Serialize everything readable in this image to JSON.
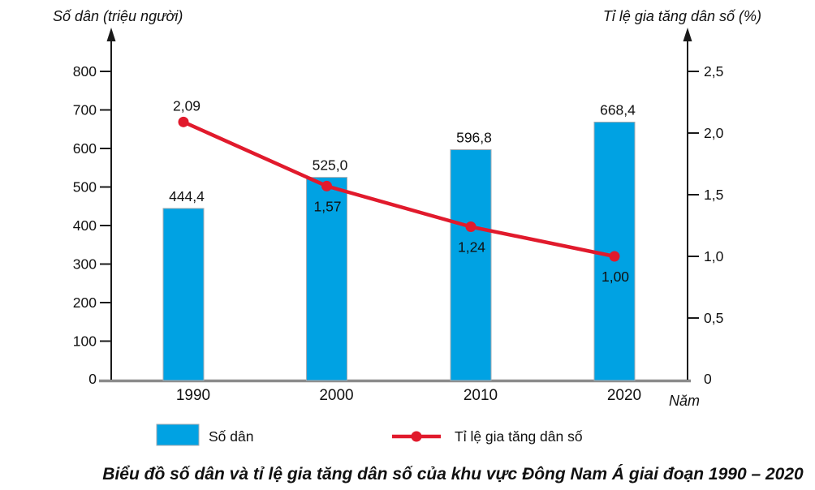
{
  "chart_data": {
    "type": "combo-bar-line",
    "title": "Biểu đồ số dân và tỉ lệ gia tăng dân số của khu vực Đông Nam Á giai đoạn 1990 – 2020",
    "categories": [
      "1990",
      "2000",
      "2010",
      "2020"
    ],
    "x_axis": {
      "label": "Năm"
    },
    "left_axis": {
      "title": "Số dân (triệu người)",
      "range": [
        0,
        800
      ],
      "tick_step": 100,
      "tick_labels": [
        "0",
        "100",
        "200",
        "300",
        "400",
        "500",
        "600",
        "700",
        "800"
      ]
    },
    "right_axis": {
      "title": "Tỉ lệ gia tăng dân số (%)",
      "range": [
        0,
        2.5
      ],
      "tick_step": 0.5,
      "tick_labels": [
        "0",
        "0,5",
        "1,0",
        "1,5",
        "2,0",
        "2,5"
      ]
    },
    "series": [
      {
        "name": "Số dân",
        "type": "bar",
        "axis": "left",
        "color": "#00a2e3",
        "values": [
          444.4,
          525.0,
          596.8,
          668.4
        ],
        "value_labels": [
          "444,4",
          "525,0",
          "596,8",
          "668,4"
        ]
      },
      {
        "name": "Tỉ lệ gia tăng dân số",
        "type": "line",
        "axis": "right",
        "color": "#e11a2c",
        "values": [
          2.09,
          1.57,
          1.24,
          1.0
        ],
        "value_labels": [
          "2,09",
          "1,57",
          "1,24",
          "1,00"
        ]
      }
    ],
    "legend": {
      "position": "bottom",
      "items": [
        "Số dân",
        "Tỉ lệ gia tăng dân số"
      ]
    },
    "grid": false,
    "colors": {
      "bar_fill": "#00a2e3",
      "bar_stroke": "#a6abb0",
      "line": "#e11a2c",
      "axis": "#1a1a1a",
      "baseline": "#8b8b8b",
      "text": "#111111"
    }
  }
}
